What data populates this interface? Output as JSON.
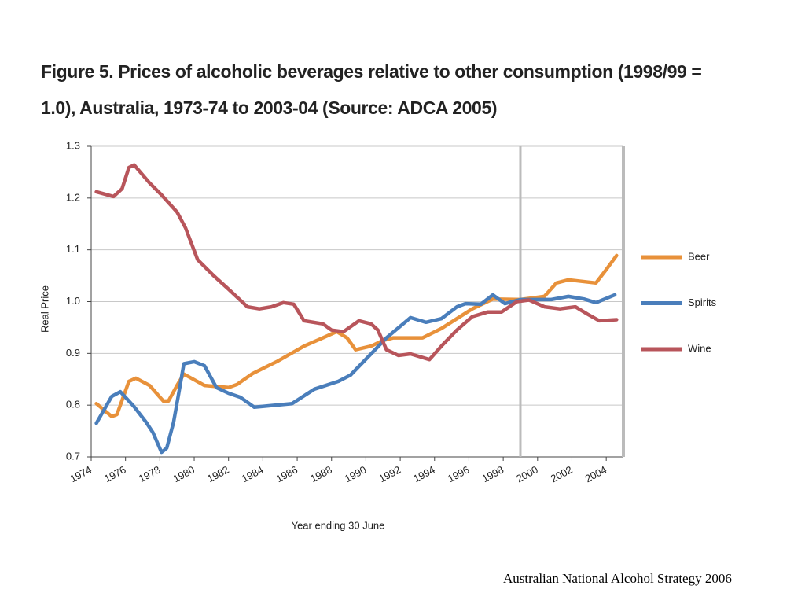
{
  "chart_data": {
    "type": "line",
    "title": "Figure 5. Prices of alcoholic beverages relative to other consumption (1998/99 = 1.0), Australia, 1973-74 to 2003-04 (Source: ADCA 2005)",
    "xlabel": "Year ending 30 June",
    "ylabel": "Real Price",
    "xlim": [
      1974,
      2005
    ],
    "xticks": [
      1974,
      1976,
      1978,
      1980,
      1982,
      1984,
      1986,
      1988,
      1990,
      1992,
      1994,
      1996,
      1998,
      2000,
      2002,
      2004
    ],
    "ylim": [
      0.7,
      1.3
    ],
    "yticks": [
      0.7,
      0.8,
      0.9,
      {
        "value": 1,
        "label": "1.0"
      },
      1.1,
      1.2,
      1.3
    ],
    "grid": true,
    "reference_x": 1999,
    "legend": "right",
    "series": [
      {
        "name": "Beer",
        "color": "#e8913a",
        "x": [
          1974.3,
          1975.2,
          1975.5,
          1976.2,
          1976.6,
          1977.4,
          1978.2,
          1978.5,
          1979,
          1979.4,
          1980.6,
          1982,
          1982.5,
          1983.4,
          1984.8,
          1986.4,
          1987.5,
          1988.3,
          1988.9,
          1989.4,
          1990.3,
          1991,
          1991.6,
          1993.3,
          1994.4,
          1996.2,
          1997.4,
          1999,
          2000.4,
          2001.1,
          2001.8,
          2003.4,
          2004,
          2004.6
        ],
        "values": [
          0.803,
          0.778,
          0.782,
          0.846,
          0.852,
          0.838,
          0.808,
          0.808,
          0.838,
          0.86,
          0.838,
          0.834,
          0.84,
          0.861,
          0.884,
          0.914,
          0.93,
          0.942,
          0.93,
          0.907,
          0.914,
          0.925,
          0.93,
          0.93,
          0.948,
          0.986,
          1.005,
          1.004,
          1.01,
          1.036,
          1.042,
          1.036,
          1.062,
          1.089
        ]
      },
      {
        "name": "Spirits",
        "color": "#4a7ebb",
        "x": [
          1974.3,
          1975.2,
          1975.7,
          1976.5,
          1977.2,
          1977.6,
          1978.1,
          1978.4,
          1978.8,
          1979.1,
          1979.4,
          1980,
          1980.6,
          1981.3,
          1982,
          1982.7,
          1983.5,
          1985.7,
          1987,
          1988.4,
          1989.1,
          1990.3,
          1991.2,
          1992.6,
          1993.5,
          1994.4,
          1995.3,
          1995.8,
          1996.7,
          1997.4,
          1998.1,
          1999,
          2000.8,
          2001.8,
          2002.7,
          2003.4,
          2004.5
        ],
        "values": [
          0.765,
          0.817,
          0.826,
          0.797,
          0.767,
          0.747,
          0.709,
          0.717,
          0.767,
          0.823,
          0.88,
          0.884,
          0.876,
          0.834,
          0.823,
          0.815,
          0.796,
          0.803,
          0.831,
          0.846,
          0.858,
          0.899,
          0.93,
          0.969,
          0.96,
          0.967,
          0.99,
          0.996,
          0.995,
          1.013,
          0.996,
          1.004,
          1.004,
          1.01,
          1.005,
          0.998,
          1.013
        ]
      },
      {
        "name": "Wine",
        "color": "#b8555b",
        "x": [
          1974.3,
          1975.3,
          1975.8,
          1976.2,
          1976.5,
          1977.4,
          1978.1,
          1979,
          1979.5,
          1980.2,
          1981.1,
          1982,
          1983.1,
          1983.8,
          1984.5,
          1985.2,
          1985.8,
          1986.4,
          1987.5,
          1988,
          1988.7,
          1989.6,
          1990.3,
          1990.7,
          1991.2,
          1991.9,
          1992.6,
          1993.7,
          1994.4,
          1995.3,
          1996.2,
          1997.1,
          1997.9,
          1998.8,
          1999.5,
          2000.4,
          2001.3,
          2002.2,
          2002.9,
          2003.6,
          2004.6
        ],
        "values": [
          1.212,
          1.203,
          1.218,
          1.259,
          1.264,
          1.229,
          1.206,
          1.173,
          1.142,
          1.081,
          1.051,
          1.024,
          0.99,
          0.986,
          0.99,
          0.998,
          0.995,
          0.963,
          0.957,
          0.945,
          0.942,
          0.963,
          0.957,
          0.945,
          0.907,
          0.896,
          0.899,
          0.888,
          0.914,
          0.945,
          0.971,
          0.98,
          0.98,
          1.0,
          1.003,
          0.99,
          0.986,
          0.99,
          0.976,
          0.963,
          0.965
        ]
      }
    ],
    "source": "Australian National Alcohol Strategy 2006"
  }
}
